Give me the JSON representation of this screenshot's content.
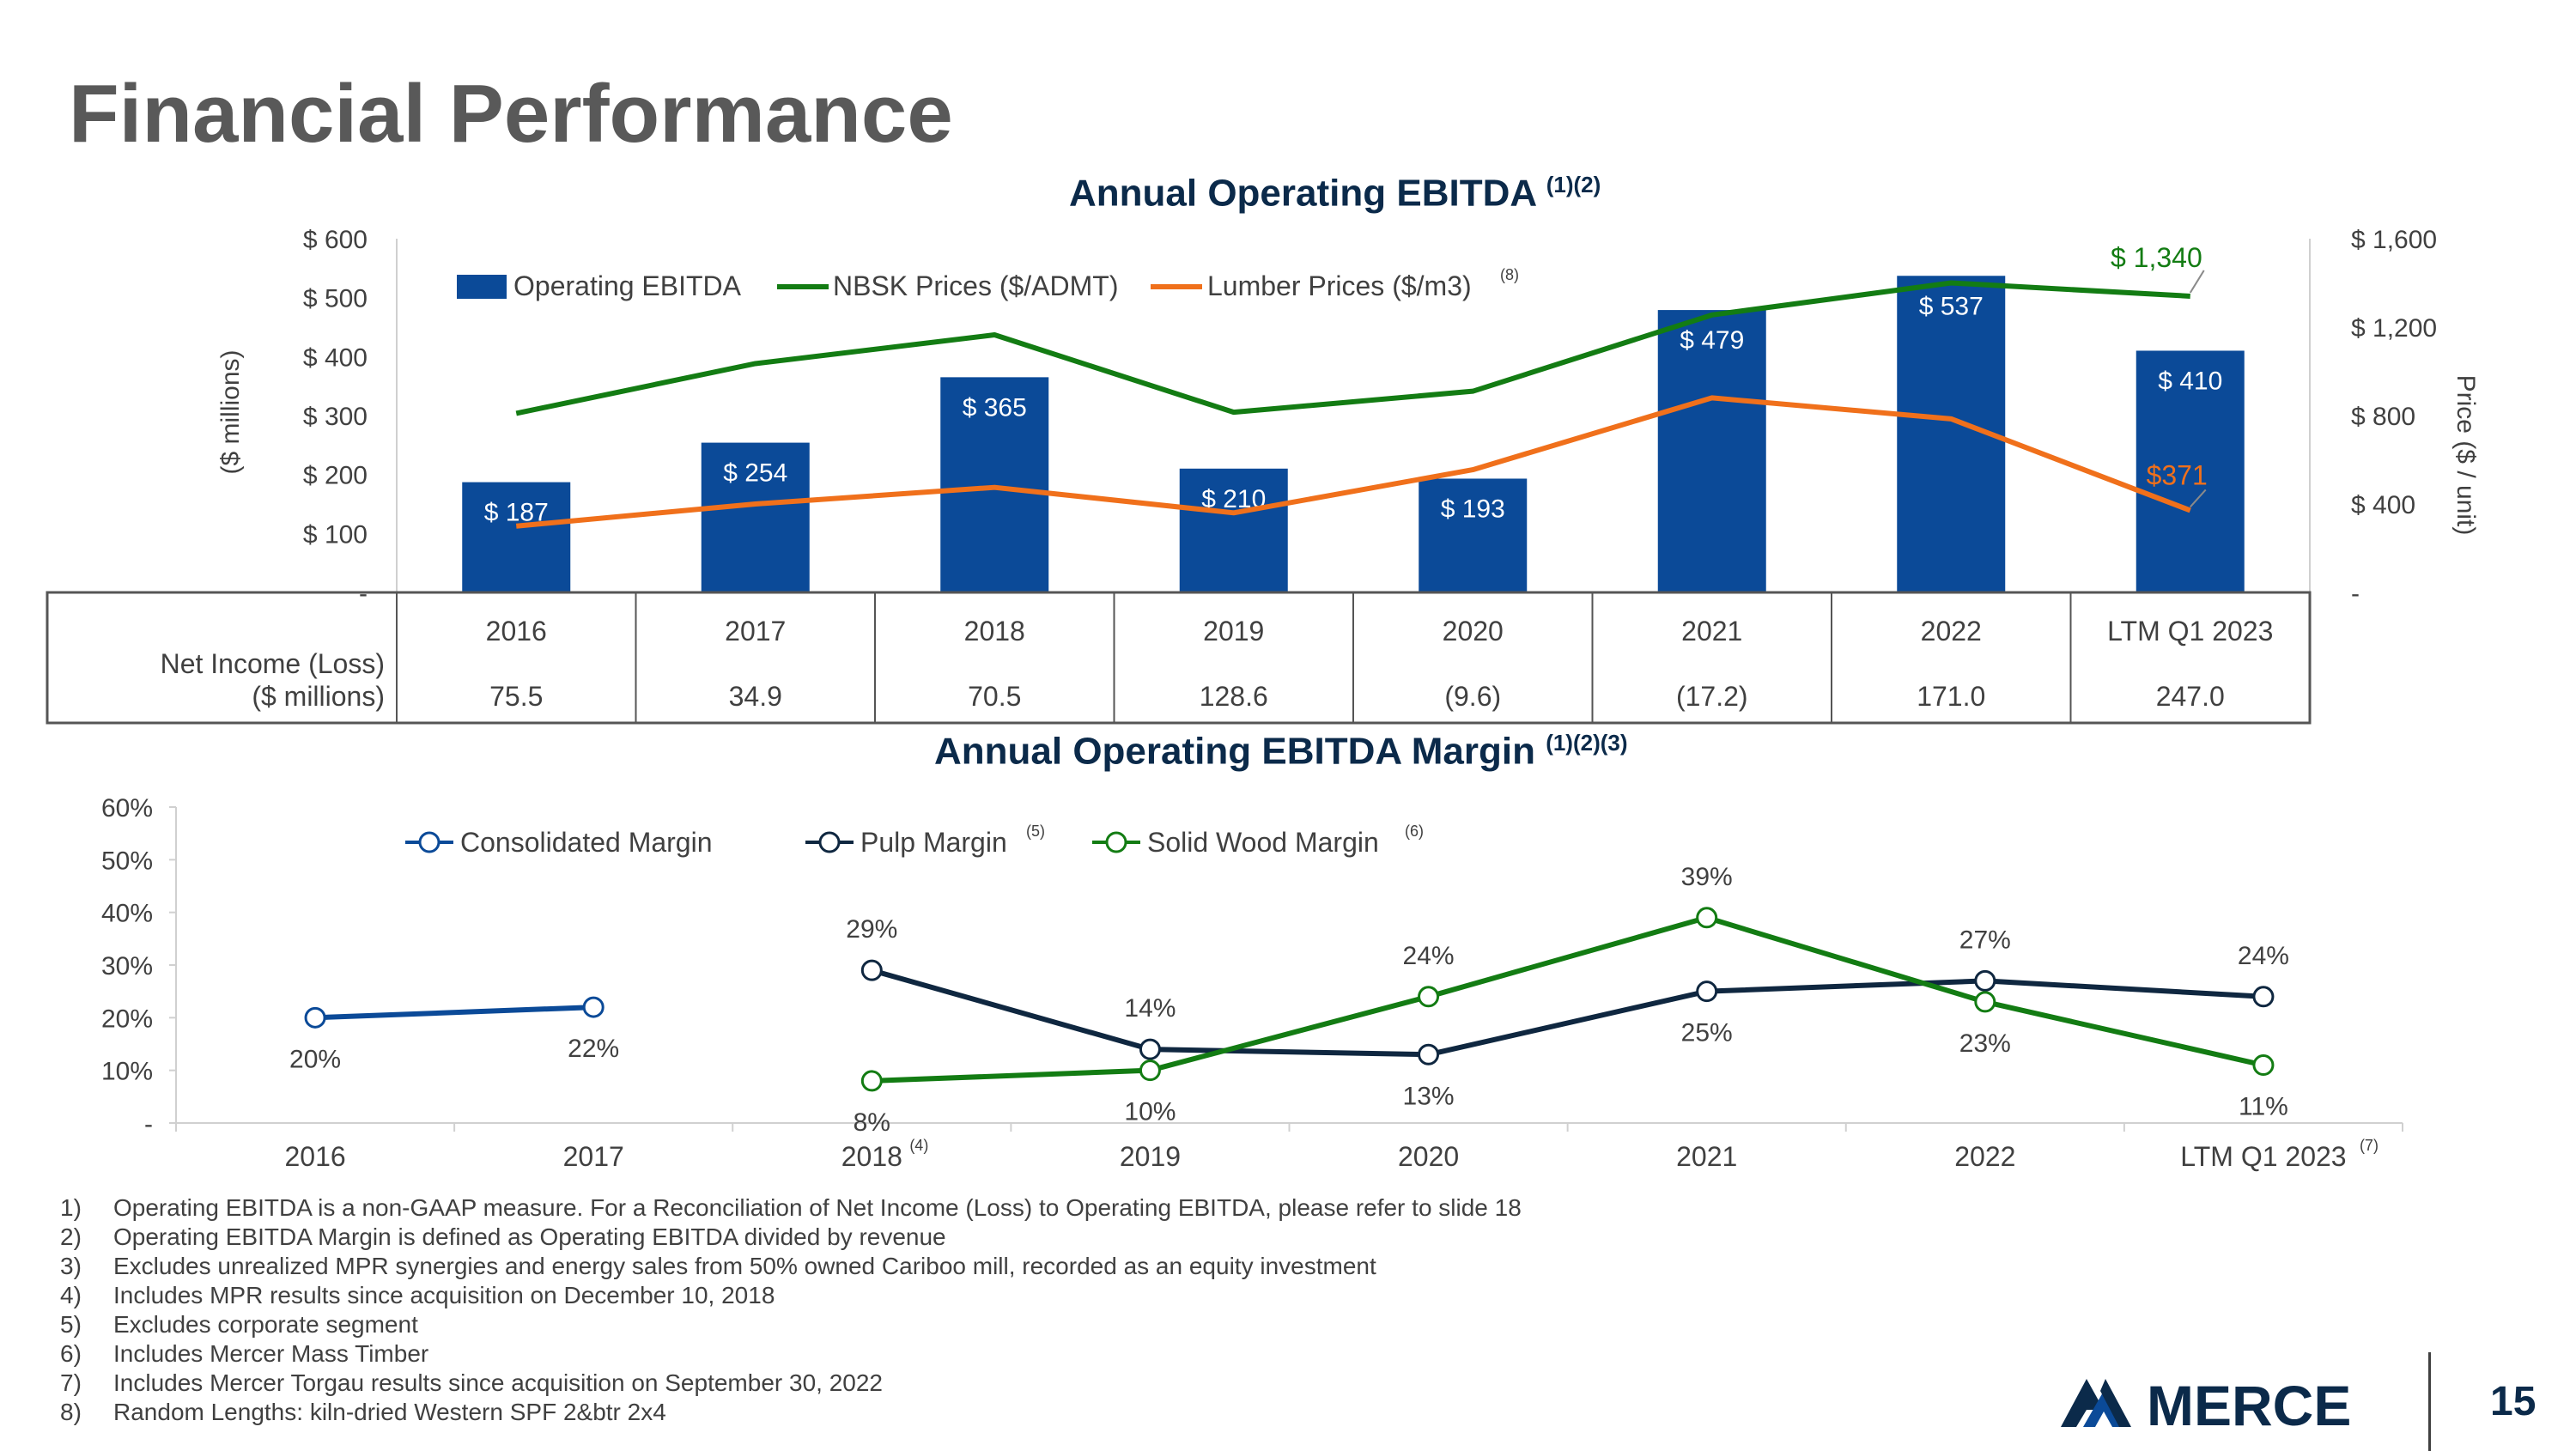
{
  "page": {
    "title": "Financial Performance",
    "page_number": "15",
    "logo_text": "MERCER"
  },
  "colors": {
    "ebitda": "#0b4a98",
    "nbsk": "#137c13",
    "lumber": "#f0701b",
    "consolidated": "#0b4a98",
    "pulp": "#0f2740",
    "solidwood": "#137c13"
  },
  "chart_data": [
    {
      "type": "bar",
      "title": "Annual Operating EBITDA",
      "title_sup": "(1)(2)",
      "categories": [
        "2016",
        "2017",
        "2018",
        "2019",
        "2020",
        "2021",
        "2022",
        "LTM Q1 2023"
      ],
      "ylabel": "($ millions)",
      "y2label": "Price ($ / unit)",
      "ylim": [
        0,
        600
      ],
      "y2lim": [
        0,
        1600
      ],
      "yticks": [
        0,
        100,
        200,
        300,
        400,
        500,
        600
      ],
      "ytick_labels": [
        "-",
        "$ 100",
        "$ 200",
        "$ 300",
        "$ 400",
        "$ 500",
        "$ 600"
      ],
      "y2ticks": [
        0,
        400,
        800,
        1200,
        1600
      ],
      "y2tick_labels": [
        "-",
        "$ 400",
        "$ 800",
        "$ 1,200",
        "$ 1,600"
      ],
      "series": [
        {
          "name": "Operating EBITDA",
          "kind": "bar",
          "axis": "left",
          "values": [
            187,
            254,
            365,
            210,
            193,
            479,
            537,
            410
          ],
          "labels": [
            "$ 187",
            "$ 254",
            "$ 365",
            "$ 210",
            "$ 193",
            "$ 479",
            "$ 537",
            "$ 410"
          ]
        },
        {
          "name": "NBSK Prices ($/ADMT)",
          "kind": "line",
          "axis": "right",
          "values": [
            810,
            1035,
            1165,
            815,
            910,
            1255,
            1400,
            1340
          ],
          "end_label": "$ 1,340"
        },
        {
          "name": "Lumber Prices ($/m3)",
          "legend_sup": "(8)",
          "kind": "line",
          "axis": "right",
          "values": [
            300,
            400,
            475,
            360,
            555,
            880,
            785,
            371
          ],
          "end_label": "$371"
        }
      ],
      "table": {
        "row_label_line1": "Net Income (Loss)",
        "row_label_line2": "($ millions)",
        "values": [
          "75.5",
          "34.9",
          "70.5",
          "128.6",
          "(9.6)",
          "(17.2)",
          "171.0",
          "247.0"
        ]
      }
    },
    {
      "type": "line",
      "title": "Annual Operating EBITDA Margin",
      "title_sup": "(1)(2)(3)",
      "categories": [
        "2016",
        "2017",
        "2018",
        "2019",
        "2020",
        "2021",
        "2022",
        "LTM Q1 2023"
      ],
      "category_sups": [
        "",
        "",
        "(4)",
        "",
        "",
        "",
        "",
        "(7)"
      ],
      "ylim": [
        0,
        60
      ],
      "yticks": [
        0,
        10,
        20,
        30,
        40,
        50,
        60
      ],
      "ytick_labels": [
        "-",
        "10%",
        "20%",
        "30%",
        "40%",
        "50%",
        "60%"
      ],
      "series": [
        {
          "name": "Consolidated Margin",
          "legend_sup": "",
          "values": [
            20,
            22,
            null,
            null,
            null,
            null,
            null,
            null
          ],
          "labels": [
            "20%",
            "22%",
            "",
            "",
            "",
            "",
            "",
            ""
          ]
        },
        {
          "name": "Pulp Margin",
          "legend_sup": "(5)",
          "values": [
            null,
            null,
            29,
            14,
            13,
            25,
            27,
            24
          ],
          "labels": [
            "",
            "",
            "29%",
            "14%",
            "13%",
            "25%",
            "27%",
            "24%"
          ]
        },
        {
          "name": "Solid Wood Margin",
          "legend_sup": "(6)",
          "values": [
            null,
            null,
            8,
            10,
            24,
            39,
            23,
            11
          ],
          "labels": [
            "",
            "",
            "8%",
            "10%",
            "24%",
            "39%",
            "23%",
            "11%"
          ]
        }
      ]
    }
  ],
  "footnotes": [
    {
      "num": "1)",
      "text": "Operating EBITDA is a non-GAAP measure. For a Reconciliation of Net Income (Loss) to Operating EBITDA, please refer to slide 18"
    },
    {
      "num": "2)",
      "text": "Operating EBITDA Margin is defined as Operating EBITDA divided by revenue"
    },
    {
      "num": "3)",
      "text": "Excludes unrealized MPR synergies and energy sales from 50% owned Cariboo mill, recorded as an equity investment"
    },
    {
      "num": "4)",
      "text": "Includes MPR results since acquisition on December 10, 2018"
    },
    {
      "num": "5)",
      "text": "Excludes corporate segment"
    },
    {
      "num": "6)",
      "text": "Includes Mercer Mass Timber"
    },
    {
      "num": "7)",
      "text": "Includes Mercer Torgau results since acquisition on September 30, 2022"
    },
    {
      "num": "8)",
      "text": "Random Lengths: kiln-dried Western SPF 2&btr 2x4"
    }
  ]
}
